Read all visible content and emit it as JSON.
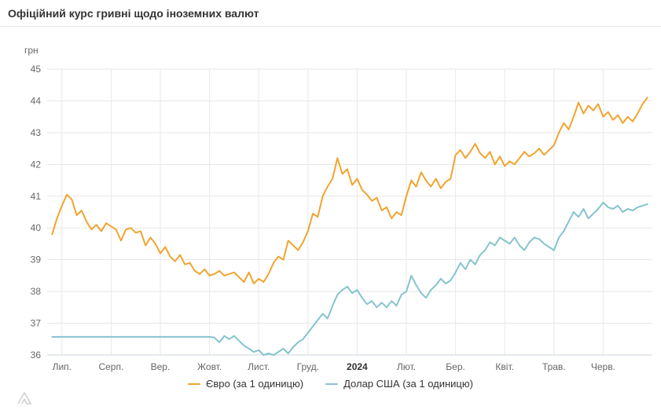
{
  "header": {
    "title": "Офіційний курс гривні щодо іноземних валют"
  },
  "chart_data": {
    "type": "line",
    "title": "Офіційний курс гривні щодо іноземних валют",
    "y_axis_title": "грн",
    "ylim": [
      36,
      45
    ],
    "y_ticks": [
      36,
      37,
      38,
      39,
      40,
      41,
      42,
      43,
      44,
      45
    ],
    "x_ticks": [
      {
        "label": "Лип.",
        "bold": false
      },
      {
        "label": "Серп.",
        "bold": false
      },
      {
        "label": "Вер.",
        "bold": false
      },
      {
        "label": "Жовт.",
        "bold": false
      },
      {
        "label": "Лист.",
        "bold": false
      },
      {
        "label": "Груд.",
        "bold": false
      },
      {
        "label": "2024",
        "bold": true
      },
      {
        "label": "Лют.",
        "bold": false
      },
      {
        "label": "Бер.",
        "bold": false
      },
      {
        "label": "Квіт.",
        "bold": false
      },
      {
        "label": "Трав.",
        "bold": false
      },
      {
        "label": "Черв.",
        "bold": false
      }
    ],
    "grid": true,
    "legend_position": "bottom",
    "x_range_months": [
      -0.2,
      11.9
    ],
    "plot_x_domain": [
      -0.3,
      12.0
    ],
    "series": [
      {
        "name": "Євро (за 1 одиницю)",
        "color": "#f0a430",
        "values": [
          39.8,
          40.3,
          40.7,
          41.05,
          40.9,
          40.4,
          40.55,
          40.2,
          39.95,
          40.1,
          39.9,
          40.15,
          40.05,
          39.95,
          39.6,
          39.95,
          40.0,
          39.85,
          39.9,
          39.45,
          39.7,
          39.5,
          39.2,
          39.4,
          39.1,
          38.95,
          39.15,
          38.85,
          38.9,
          38.65,
          38.55,
          38.7,
          38.5,
          38.55,
          38.65,
          38.5,
          38.55,
          38.6,
          38.45,
          38.3,
          38.6,
          38.25,
          38.4,
          38.3,
          38.55,
          38.9,
          39.1,
          39.0,
          39.6,
          39.45,
          39.3,
          39.55,
          39.9,
          40.45,
          40.35,
          41.0,
          41.3,
          41.55,
          42.2,
          41.7,
          41.85,
          41.35,
          41.55,
          41.2,
          41.05,
          40.85,
          40.95,
          40.55,
          40.65,
          40.3,
          40.5,
          40.4,
          41.0,
          41.5,
          41.3,
          41.75,
          41.5,
          41.3,
          41.55,
          41.25,
          41.45,
          41.55,
          42.3,
          42.45,
          42.2,
          42.4,
          42.65,
          42.35,
          42.2,
          42.4,
          42.0,
          42.25,
          41.95,
          42.1,
          42.0,
          42.2,
          42.4,
          42.25,
          42.35,
          42.5,
          42.3,
          42.45,
          42.6,
          43.0,
          43.3,
          43.1,
          43.5,
          43.95,
          43.6,
          43.85,
          43.7,
          43.9,
          43.5,
          43.65,
          43.4,
          43.55,
          43.3,
          43.5,
          43.35,
          43.6,
          43.9,
          44.1
        ]
      },
      {
        "name": "Долар США (за 1 одиницю)",
        "color": "#85c4ce",
        "values": [
          36.57,
          36.57,
          36.57,
          36.57,
          36.57,
          36.57,
          36.57,
          36.57,
          36.57,
          36.57,
          36.57,
          36.57,
          36.57,
          36.57,
          36.57,
          36.57,
          36.57,
          36.57,
          36.57,
          36.57,
          36.57,
          36.57,
          36.57,
          36.57,
          36.57,
          36.57,
          36.57,
          36.57,
          36.57,
          36.57,
          36.57,
          36.57,
          36.57,
          36.55,
          36.4,
          36.6,
          36.5,
          36.6,
          36.45,
          36.3,
          36.2,
          36.1,
          36.15,
          36.0,
          36.05,
          36.0,
          36.1,
          36.2,
          36.05,
          36.25,
          36.4,
          36.5,
          36.7,
          36.9,
          37.1,
          37.3,
          37.15,
          37.55,
          37.9,
          38.05,
          38.15,
          37.95,
          38.05,
          37.8,
          37.6,
          37.7,
          37.5,
          37.65,
          37.5,
          37.7,
          37.55,
          37.9,
          38.0,
          38.5,
          38.2,
          37.95,
          37.8,
          38.05,
          38.2,
          38.4,
          38.25,
          38.35,
          38.6,
          38.9,
          38.7,
          39.0,
          38.85,
          39.15,
          39.3,
          39.55,
          39.45,
          39.7,
          39.6,
          39.5,
          39.7,
          39.45,
          39.3,
          39.55,
          39.7,
          39.65,
          39.5,
          39.4,
          39.3,
          39.7,
          39.9,
          40.2,
          40.5,
          40.35,
          40.6,
          40.3,
          40.45,
          40.6,
          40.8,
          40.65,
          40.6,
          40.7,
          40.5,
          40.6,
          40.55,
          40.65,
          40.7,
          40.75
        ]
      }
    ]
  }
}
